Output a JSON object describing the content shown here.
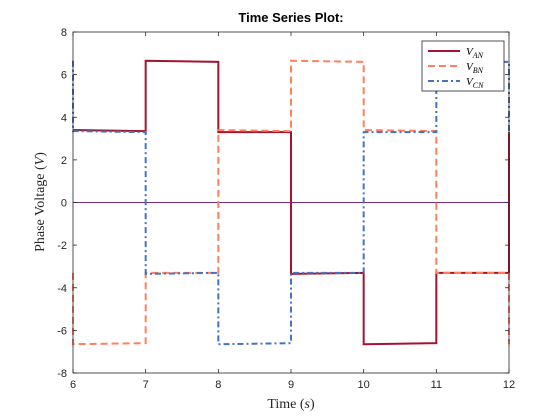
{
  "chart_data": {
    "type": "line",
    "title": "Time Series Plot:",
    "xlabel": "Time (s)",
    "ylabel": "Phase Voltage (V)",
    "xlim": [
      6,
      12
    ],
    "ylim": [
      -8,
      8
    ],
    "xticks": [
      6,
      7,
      8,
      9,
      10,
      11,
      12
    ],
    "yticks": [
      -8,
      -6,
      -4,
      -2,
      0,
      2,
      4,
      6,
      8
    ],
    "grid": false,
    "legend_position": "top-right",
    "zero_line": {
      "y": 0,
      "color": "#7B2C7A"
    },
    "series": [
      {
        "name": "V_AN",
        "legend_main": "V",
        "legend_sub": "AN",
        "color": "#A2142F",
        "style": "solid",
        "x": [
          6,
          7,
          7,
          8,
          8,
          9,
          9,
          10,
          10,
          11,
          11,
          12,
          12
        ],
        "y": [
          3.4,
          3.35,
          6.65,
          6.6,
          3.3,
          3.3,
          -3.35,
          -3.3,
          -6.65,
          -6.6,
          -3.3,
          -3.3,
          3.3
        ]
      },
      {
        "name": "V_BN",
        "legend_main": "V",
        "legend_sub": "BN",
        "color": "#FF7F5E",
        "style": "dashed",
        "x": [
          6,
          6,
          7,
          7,
          8,
          8,
          9,
          9,
          10,
          10,
          11,
          11,
          12,
          12
        ],
        "y": [
          -3.3,
          -6.65,
          -6.6,
          -3.3,
          -3.3,
          3.4,
          3.35,
          6.65,
          6.6,
          3.4,
          3.35,
          -3.3,
          -3.3,
          -6.65
        ]
      },
      {
        "name": "V_CN",
        "legend_main": "V",
        "legend_sub": "CN",
        "color": "#4472C4",
        "style": "dashdot",
        "x": [
          6,
          6,
          7,
          7,
          8,
          8,
          9,
          9,
          10,
          10,
          11,
          11,
          12,
          12
        ],
        "y": [
          6.65,
          3.35,
          3.3,
          -3.35,
          -3.3,
          -6.65,
          -6.6,
          -3.3,
          -3.3,
          3.3,
          3.3,
          6.6,
          6.6,
          3.3
        ]
      }
    ]
  }
}
